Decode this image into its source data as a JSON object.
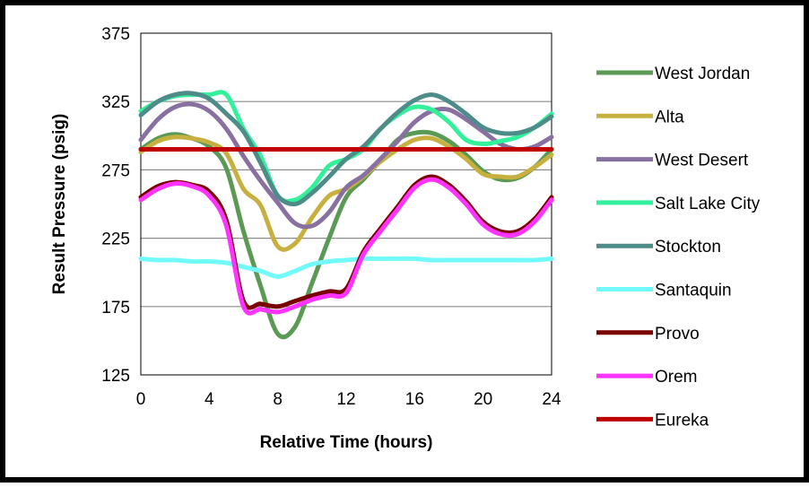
{
  "chart_data": {
    "type": "line",
    "title": "",
    "xlabel": "Relative Time (hours)",
    "ylabel": "Result Pressure (psig)",
    "xlim": [
      0,
      24
    ],
    "ylim": [
      125,
      375
    ],
    "x_ticks": [
      "0",
      "4",
      "8",
      "12",
      "16",
      "20",
      "24"
    ],
    "y_ticks": [
      "125",
      "175",
      "225",
      "275",
      "325",
      "375"
    ],
    "grid": "horizontal",
    "legend_position": "right",
    "x": [
      0,
      1,
      2,
      3,
      4,
      5,
      6,
      7,
      8,
      9,
      10,
      11,
      12,
      13,
      14,
      15,
      16,
      17,
      18,
      19,
      20,
      21,
      22,
      23,
      24
    ],
    "series": [
      {
        "name": "West Jordan",
        "color": "#5a9a55",
        "values": [
          290,
          298,
          301,
          298,
          292,
          276,
          230,
          190,
          155,
          160,
          192,
          225,
          255,
          268,
          282,
          297,
          302,
          302,
          296,
          286,
          274,
          268,
          269,
          277,
          290
        ]
      },
      {
        "name": "Alta",
        "color": "#c8b040",
        "values": [
          288,
          296,
          299,
          298,
          295,
          287,
          261,
          249,
          219,
          221,
          240,
          256,
          261,
          270,
          281,
          290,
          297,
          298,
          292,
          283,
          272,
          270,
          270,
          277,
          286
        ]
      },
      {
        "name": "West Desert",
        "color": "#8870a0",
        "values": [
          297,
          312,
          321,
          323,
          318,
          305,
          285,
          267,
          251,
          236,
          234,
          244,
          262,
          271,
          283,
          296,
          310,
          318,
          319,
          312,
          303,
          294,
          290,
          292,
          299
        ]
      },
      {
        "name": "Salt Lake City",
        "color": "#33f09a",
        "values": [
          318,
          325,
          329,
          330,
          330,
          330,
          305,
          285,
          256,
          253,
          262,
          278,
          283,
          290,
          305,
          315,
          321,
          319,
          310,
          297,
          294,
          296,
          299,
          306,
          316
        ]
      },
      {
        "name": "Stockton",
        "color": "#4e8c8a",
        "values": [
          315,
          325,
          330,
          331,
          327,
          316,
          303,
          280,
          256,
          250,
          258,
          270,
          283,
          292,
          305,
          317,
          326,
          330,
          325,
          316,
          306,
          302,
          302,
          306,
          314
        ]
      },
      {
        "name": "Santaquin",
        "color": "#72fafa",
        "values": [
          210,
          209,
          209,
          208,
          208,
          207,
          204,
          201,
          197,
          201,
          206,
          208,
          209,
          210,
          210,
          210,
          210,
          209,
          209,
          209,
          209,
          209,
          209,
          209,
          210
        ]
      },
      {
        "name": "Provo",
        "color": "#7a0000",
        "values": [
          255,
          263,
          266,
          264,
          259,
          238,
          179,
          177,
          175,
          179,
          183,
          186,
          188,
          215,
          232,
          248,
          264,
          270,
          264,
          252,
          237,
          230,
          230,
          239,
          255
        ]
      },
      {
        "name": "Orem",
        "color": "#ff33ff",
        "values": [
          253,
          261,
          265,
          263,
          256,
          234,
          175,
          173,
          171,
          175,
          180,
          183,
          185,
          213,
          230,
          246,
          262,
          268,
          262,
          250,
          235,
          228,
          228,
          237,
          253
        ]
      },
      {
        "name": "Eureka",
        "color": "#c00000",
        "values": [
          290,
          290,
          290,
          290,
          290,
          290,
          290,
          290,
          290,
          290,
          290,
          290,
          290,
          290,
          290,
          290,
          290,
          290,
          290,
          290,
          290,
          290,
          290,
          290,
          290
        ]
      }
    ]
  }
}
